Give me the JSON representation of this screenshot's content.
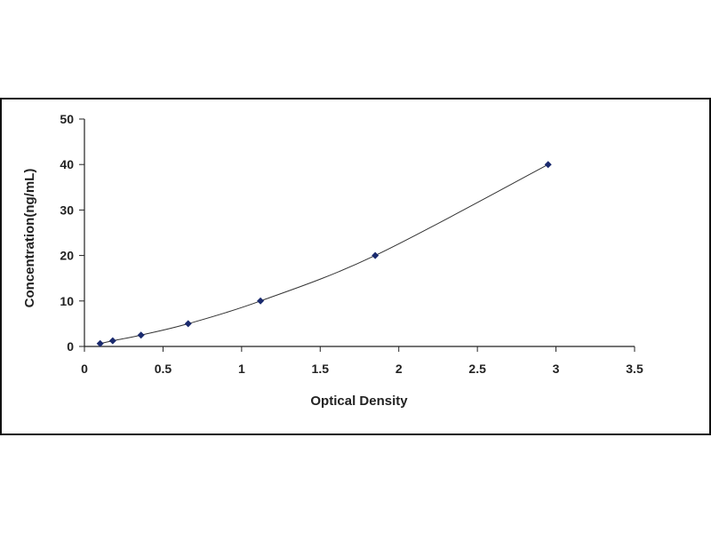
{
  "chart_data": {
    "type": "scatter",
    "title": "",
    "xlabel": "Optical Density",
    "ylabel": "Concentration(ng/mL)",
    "xlim": [
      0,
      3.5
    ],
    "ylim": [
      0,
      50
    ],
    "x_ticks": [
      "0",
      "0.5",
      "1",
      "1.5",
      "2",
      "2.5",
      "3",
      "3.5"
    ],
    "y_ticks": [
      "0",
      "10",
      "20",
      "30",
      "40",
      "50"
    ],
    "grid": false,
    "legend": "none",
    "series": [
      {
        "x": [
          0.1,
          0.18,
          0.36,
          0.66,
          1.12,
          1.85,
          2.95
        ],
        "y": [
          0.625,
          1.25,
          2.5,
          5,
          10,
          20,
          40
        ],
        "marker": "diamond",
        "fit": "smooth-curve"
      }
    ],
    "colors": {
      "marker": "#1a2a6e",
      "curve": "#333333",
      "axis": "#222222"
    }
  }
}
